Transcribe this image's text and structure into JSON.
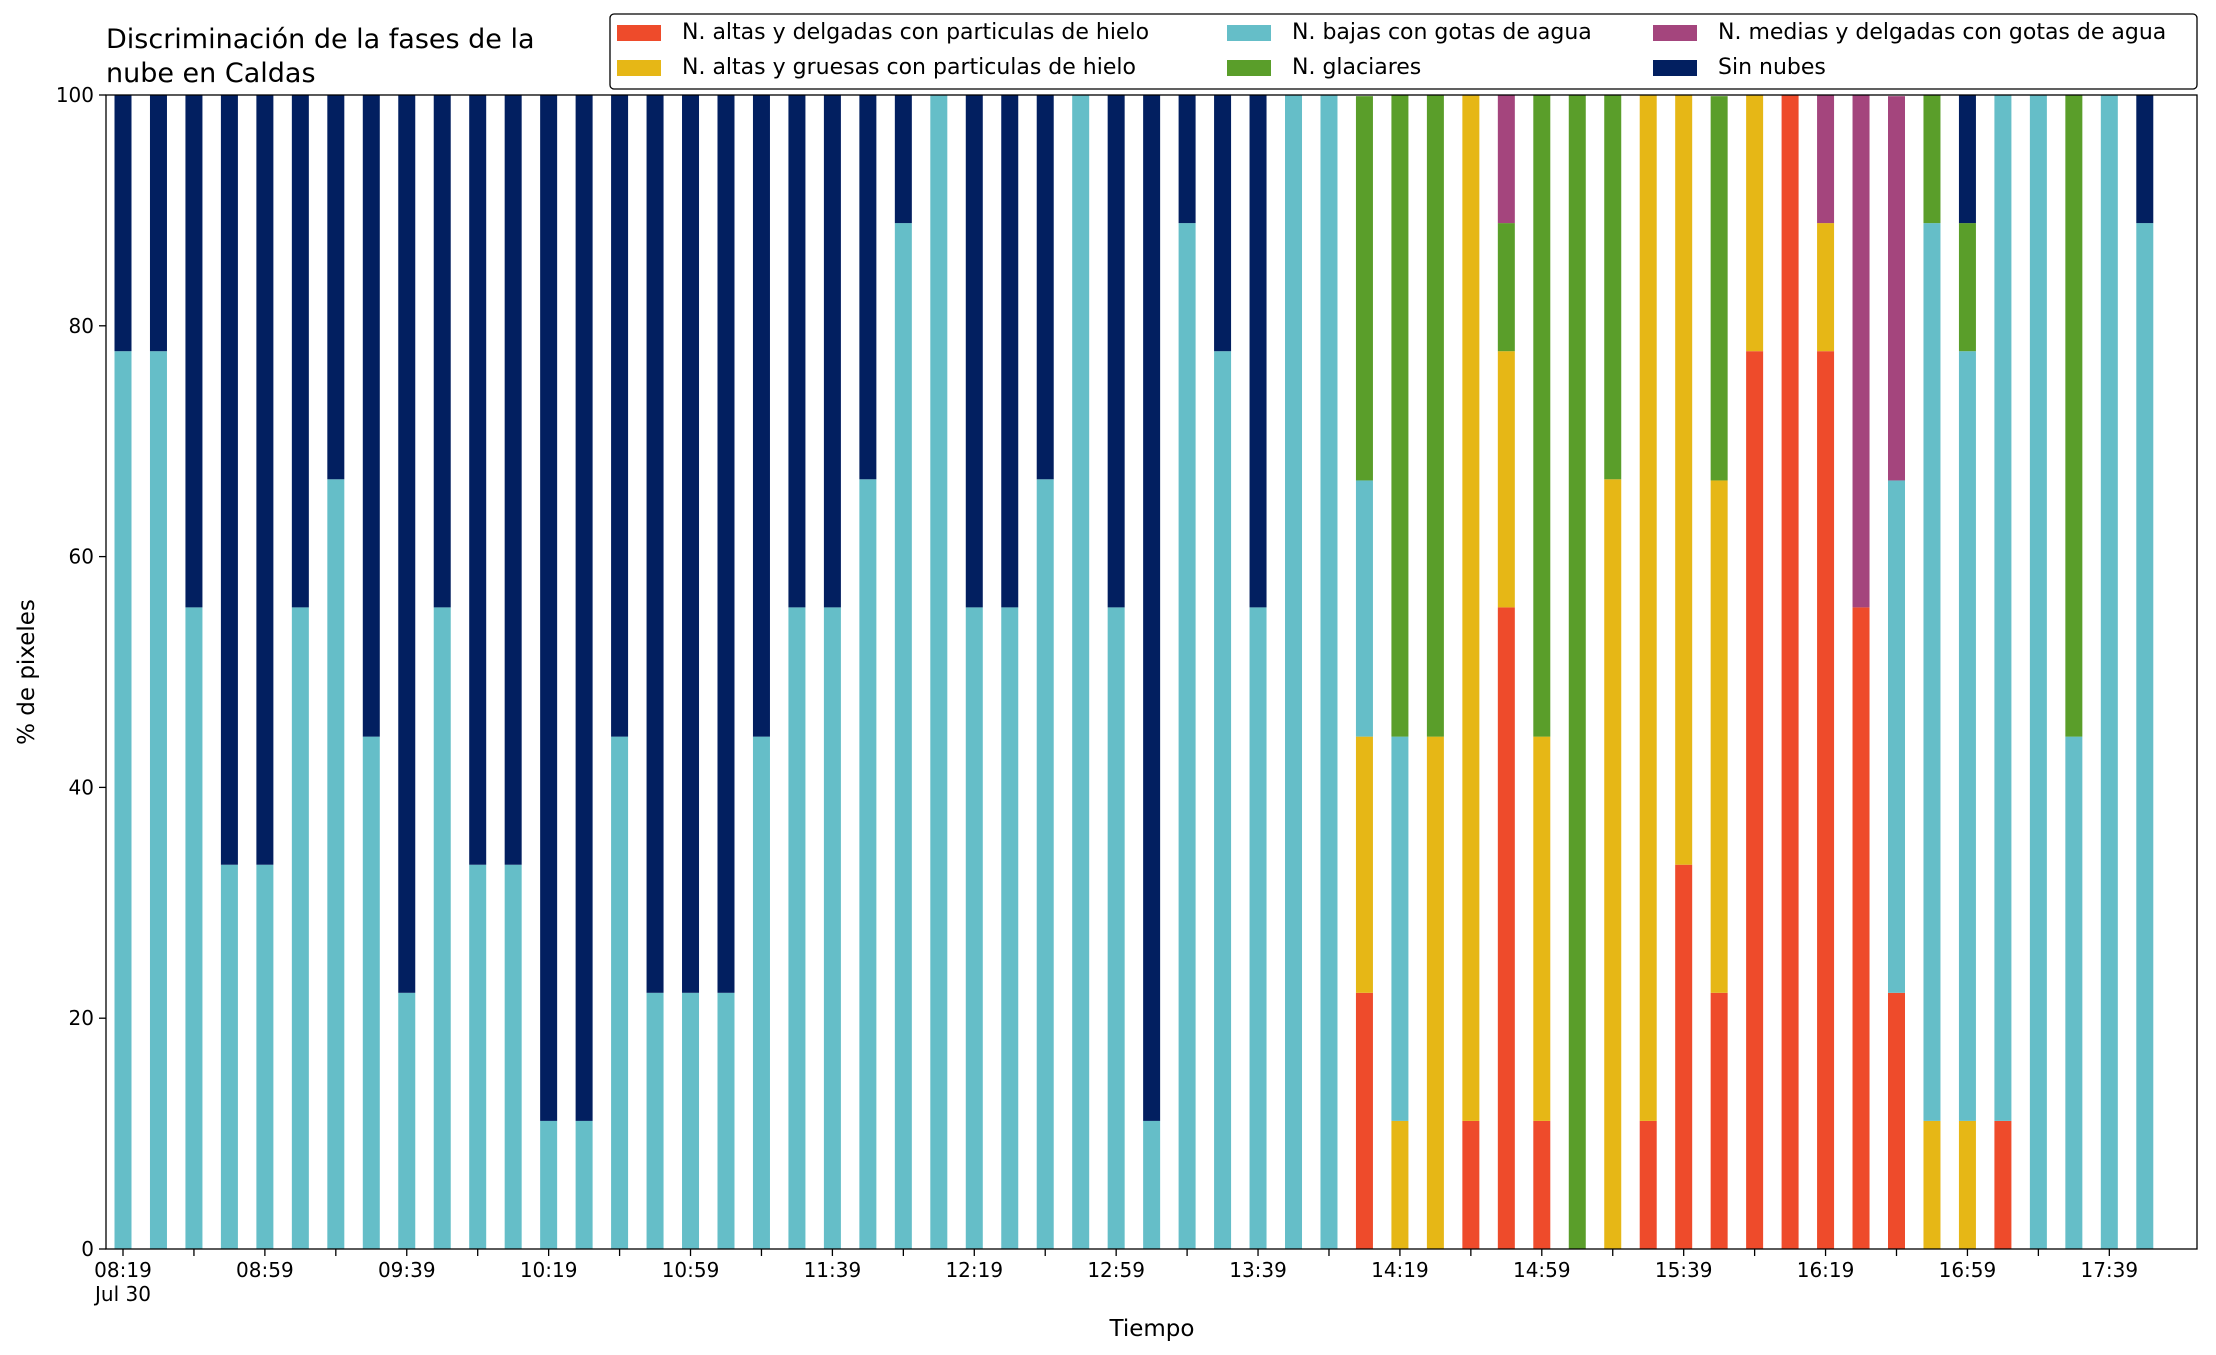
{
  "chart_data": {
    "type": "stacked_bar",
    "title": [
      "Discriminación de la fases de la",
      "nube en Caldas"
    ],
    "x_label": "Tiempo",
    "y_label": "% de pixeles",
    "x_date_label": "Jul 30",
    "categories": [
      "08:19",
      null,
      null,
      null,
      "08:59",
      null,
      null,
      null,
      "09:39",
      null,
      null,
      null,
      "10:19",
      null,
      null,
      null,
      "10:59",
      null,
      null,
      null,
      "11:39",
      null,
      null,
      null,
      "12:19",
      null,
      null,
      null,
      "12:59",
      null,
      null,
      null,
      "13:39",
      null,
      null,
      null,
      "14:19",
      null,
      null,
      null,
      "14:59",
      null,
      null,
      null,
      "15:39",
      null,
      null,
      null,
      "16:19",
      null,
      null,
      null,
      "16:59",
      null,
      null,
      null,
      "17:39",
      null
    ],
    "ylim": [
      0,
      100
    ],
    "yticks": [
      0,
      20,
      40,
      60,
      80,
      100
    ],
    "legend": "top-right",
    "series": [
      {
        "name": "N. altas y delgadas con particulas de hielo",
        "color": "#ee4b2b",
        "values": [
          0,
          0,
          0,
          0,
          0,
          0,
          0,
          0,
          0,
          0,
          0,
          0,
          0,
          0,
          0,
          0,
          0,
          0,
          0,
          0,
          0,
          0,
          0,
          0,
          0,
          0,
          0,
          0,
          0,
          0,
          0,
          0,
          0,
          0,
          0,
          22.2,
          0,
          0,
          11.1,
          55.6,
          11.1,
          0,
          0,
          11.1,
          33.3,
          22.2,
          77.8,
          100,
          77.8,
          55.6,
          22.2,
          0,
          0,
          11.1,
          0,
          0,
          0,
          0
        ]
      },
      {
        "name": "N. altas y gruesas con particulas de hielo",
        "color": "#e6b716",
        "values": [
          0,
          0,
          0,
          0,
          0,
          0,
          0,
          0,
          0,
          0,
          0,
          0,
          0,
          0,
          0,
          0,
          0,
          0,
          0,
          0,
          0,
          0,
          0,
          0,
          0,
          0,
          0,
          0,
          0,
          0,
          0,
          0,
          0,
          0,
          0,
          22.2,
          11.1,
          44.4,
          88.9,
          22.2,
          33.3,
          0,
          66.7,
          88.9,
          66.7,
          44.4,
          22.2,
          0,
          11.1,
          0,
          0,
          11.1,
          11.1,
          0,
          0,
          0,
          0,
          0
        ]
      },
      {
        "name": "N. bajas con gotas de agua",
        "color": "#65bec8",
        "values": [
          77.8,
          77.8,
          55.6,
          33.3,
          33.3,
          55.6,
          66.7,
          44.4,
          22.2,
          55.6,
          33.3,
          33.3,
          11.1,
          11.1,
          44.4,
          22.2,
          22.2,
          22.2,
          44.4,
          55.6,
          55.6,
          66.7,
          88.9,
          100,
          55.6,
          55.6,
          66.7,
          100,
          55.6,
          11.1,
          88.9,
          77.8,
          55.6,
          100,
          100,
          22.2,
          33.3,
          0,
          0,
          0,
          0,
          0,
          0,
          0,
          0,
          0,
          0,
          0,
          0,
          0,
          44.4,
          77.8,
          66.7,
          88.9,
          100,
          44.4,
          100,
          88.9
        ]
      },
      {
        "name": "N. glaciares",
        "color": "#5a9e2a",
        "values": [
          0,
          0,
          0,
          0,
          0,
          0,
          0,
          0,
          0,
          0,
          0,
          0,
          0,
          0,
          0,
          0,
          0,
          0,
          0,
          0,
          0,
          0,
          0,
          0,
          0,
          0,
          0,
          0,
          0,
          0,
          0,
          0,
          0,
          0,
          0,
          33.3,
          55.6,
          55.6,
          0,
          11.1,
          55.6,
          100,
          33.3,
          0,
          0,
          33.3,
          0,
          0,
          0,
          0,
          0,
          11.1,
          11.1,
          0,
          0,
          55.6,
          0,
          0
        ]
      },
      {
        "name": "N. medias y delgadas con gotas de agua",
        "color": "#a4457d",
        "values": [
          0,
          0,
          0,
          0,
          0,
          0,
          0,
          0,
          0,
          0,
          0,
          0,
          0,
          0,
          0,
          0,
          0,
          0,
          0,
          0,
          0,
          0,
          0,
          0,
          0,
          0,
          0,
          0,
          0,
          0,
          0,
          0,
          0,
          0,
          0,
          0,
          0,
          0,
          0,
          11.1,
          0,
          0,
          0,
          0,
          0,
          0,
          0,
          0,
          11.1,
          44.4,
          33.3,
          0,
          0,
          0,
          0,
          0,
          0,
          0
        ]
      },
      {
        "name": "Sin nubes",
        "color": "#021f60",
        "values": [
          22.2,
          22.2,
          44.4,
          66.7,
          66.7,
          44.4,
          33.3,
          55.6,
          77.8,
          44.4,
          66.7,
          66.7,
          88.9,
          88.9,
          55.6,
          77.8,
          77.8,
          77.8,
          55.6,
          44.4,
          44.4,
          33.3,
          11.1,
          0,
          44.4,
          44.4,
          33.3,
          0,
          44.4,
          88.9,
          11.1,
          22.2,
          44.4,
          0,
          0,
          0,
          0,
          0,
          0,
          0,
          0,
          0,
          0,
          0,
          0,
          0,
          0,
          0,
          0,
          0,
          0,
          0,
          11.1,
          0,
          0,
          0,
          0,
          11.1
        ]
      }
    ]
  }
}
